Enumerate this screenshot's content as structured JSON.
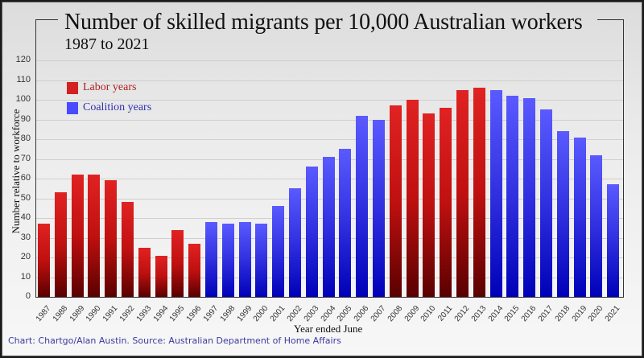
{
  "chart_data": {
    "type": "bar",
    "title": "Number of skilled migrants per 10,000 Australian workers",
    "subtitle": "1987 to 2021",
    "xlabel": "Year ended June",
    "ylabel": "Number relative to workforce",
    "ylim": [
      0,
      120
    ],
    "yticks": [
      0,
      10,
      20,
      30,
      40,
      50,
      60,
      70,
      80,
      90,
      100,
      110,
      120
    ],
    "grid": true,
    "legend_position": "upper-left",
    "legend": [
      {
        "label": "Labor years",
        "color": "#d42020"
      },
      {
        "label": "Coalition years",
        "color": "#4a4aff"
      }
    ],
    "categories": [
      "1987",
      "1988",
      "1989",
      "1990",
      "1991",
      "1992",
      "1993",
      "1994",
      "1995",
      "1996",
      "1997",
      "1998",
      "1999",
      "2000",
      "2001",
      "2002",
      "2003",
      "2004",
      "2005",
      "2006",
      "2007",
      "2008",
      "2009",
      "2010",
      "2011",
      "2012",
      "2013",
      "2014",
      "2015",
      "2016",
      "2017",
      "2018",
      "2019",
      "2020",
      "2021"
    ],
    "values": [
      37,
      53,
      62,
      62,
      59,
      48,
      25,
      21,
      34,
      27,
      38,
      37,
      38,
      37,
      46,
      55,
      66,
      71,
      75,
      92,
      90,
      97,
      100,
      93,
      96,
      105,
      106,
      105,
      102,
      101,
      95,
      84,
      81,
      72,
      57
    ],
    "government": [
      "labor",
      "labor",
      "labor",
      "labor",
      "labor",
      "labor",
      "labor",
      "labor",
      "labor",
      "labor",
      "coalition",
      "coalition",
      "coalition",
      "coalition",
      "coalition",
      "coalition",
      "coalition",
      "coalition",
      "coalition",
      "coalition",
      "coalition",
      "labor",
      "labor",
      "labor",
      "labor",
      "labor",
      "labor",
      "coalition",
      "coalition",
      "coalition",
      "coalition",
      "coalition",
      "coalition",
      "coalition",
      "coalition"
    ]
  },
  "source": "Chart: Chartgo/Alan Austin. Source: Australian Department of Home Affairs",
  "colors": {
    "labor": "#d42020",
    "coalition": "#4a4aff",
    "source_text": "#3a3aa0"
  }
}
